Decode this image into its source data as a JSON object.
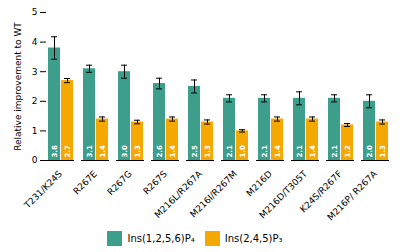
{
  "chart_data": {
    "type": "bar",
    "categories": [
      "T231/K24S",
      "R267E",
      "R267G",
      "R267S",
      "M216L/R267A",
      "M216I/R267M",
      "M216D",
      "M216D/T305T",
      "K24S/R267F",
      "M216P/ R267A"
    ],
    "series": [
      {
        "name": "Ins(1,2,5,6)P₄",
        "color": "#3d9e8c",
        "values": [
          3.8,
          3.1,
          3.0,
          2.6,
          2.5,
          2.1,
          2.1,
          2.1,
          2.1,
          2.0
        ],
        "value_labels": [
          "3.8",
          "3.1",
          "3.0",
          "2.6",
          "2.5",
          "2.1",
          "2.1",
          "2.1",
          "2.1",
          "2.0"
        ],
        "errors": [
          0.38,
          0.12,
          0.22,
          0.18,
          0.22,
          0.12,
          0.12,
          0.22,
          0.12,
          0.22
        ]
      },
      {
        "name": "Ins(2,4,5)P₃",
        "color": "#f5a800",
        "values": [
          2.7,
          1.4,
          1.3,
          1.4,
          1.3,
          1.0,
          1.4,
          1.4,
          1.2,
          1.3
        ],
        "value_labels": [
          "2.7",
          "1.4",
          "1.3",
          "1.4",
          "1.3",
          "1.0",
          "1.4",
          "1.4",
          "1.2",
          "1.3"
        ],
        "errors": [
          0.07,
          0.07,
          0.06,
          0.07,
          0.07,
          0.04,
          0.07,
          0.07,
          0.05,
          0.07
        ]
      }
    ],
    "ylabel": "Relative improvement to WT",
    "ylim": [
      0,
      5
    ],
    "yticks": [
      0,
      1,
      2,
      3,
      4,
      5
    ],
    "data_labels": true,
    "legend": "bottom",
    "grid": false
  }
}
